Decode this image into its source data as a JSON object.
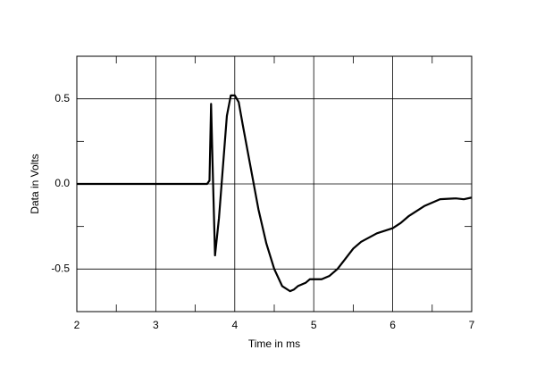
{
  "chart_data": {
    "type": "line",
    "x_label": "Time in ms",
    "y_label": "Data in Volts",
    "x": [
      2,
      3,
      3.65,
      3.68,
      3.7,
      3.72,
      3.75,
      3.8,
      3.85,
      3.9,
      3.95,
      4.0,
      4.05,
      4.1,
      4.2,
      4.3,
      4.4,
      4.5,
      4.6,
      4.7,
      4.75,
      4.8,
      4.9,
      4.95,
      5.0,
      5.1,
      5.2,
      5.3,
      5.4,
      5.5,
      5.6,
      5.8,
      6.0,
      6.1,
      6.2,
      6.4,
      6.6,
      6.8,
      6.9,
      7.0
    ],
    "series": [
      {
        "color": "#000000",
        "values": [
          0,
          0,
          0,
          0.02,
          0.47,
          0.1,
          -0.42,
          -0.2,
          0.1,
          0.4,
          0.52,
          0.52,
          0.48,
          0.35,
          0.1,
          -0.15,
          -0.35,
          -0.5,
          -0.6,
          -0.63,
          -0.62,
          -0.6,
          -0.58,
          -0.56,
          -0.56,
          -0.56,
          -0.54,
          -0.5,
          -0.44,
          -0.38,
          -0.34,
          -0.29,
          -0.26,
          -0.23,
          -0.19,
          -0.13,
          -0.09,
          -0.085,
          -0.09,
          -0.08
        ]
      }
    ],
    "xlim": [
      2,
      7
    ],
    "ylim": [
      -0.75,
      0.75
    ],
    "xticks": [
      2,
      3,
      4,
      5,
      6,
      7
    ],
    "yticks": [
      -0.5,
      {
        "value": 0,
        "label": "0.0"
      },
      0.5
    ],
    "minor_xticks": [
      2.5,
      3.5,
      4.5,
      5.5,
      6.5
    ],
    "minor_yticks": [
      -0.25,
      0.25
    ],
    "grid": true
  }
}
